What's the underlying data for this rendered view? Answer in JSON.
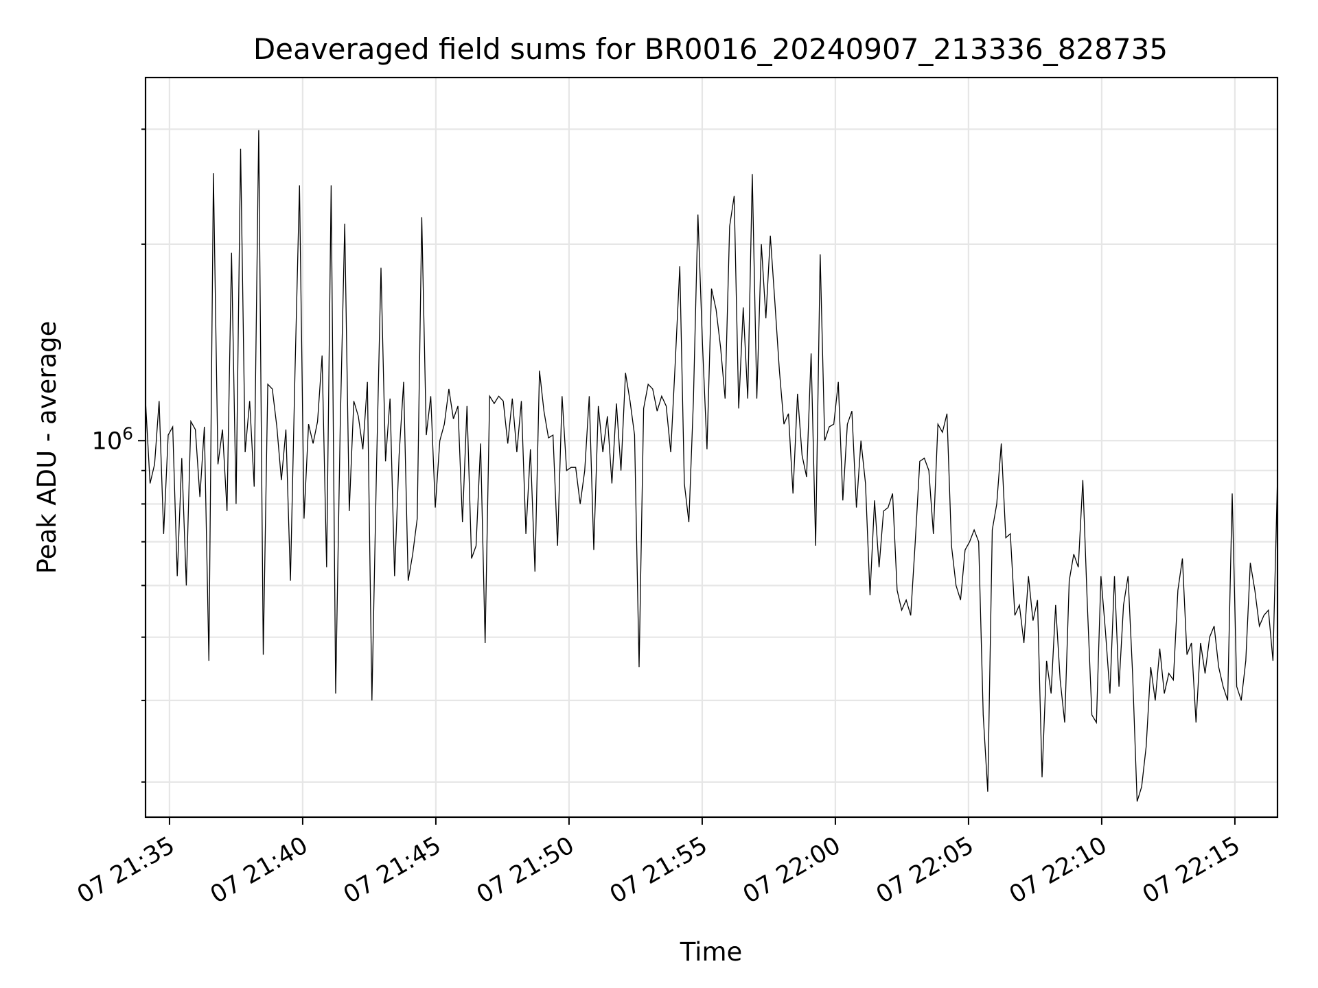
{
  "chart_data": {
    "type": "line",
    "title": "Deaveraged field sums for BR0016_20240907_213336_828735",
    "xlabel": "Time",
    "ylabel": "Peak ADU - average",
    "y_scale": "log",
    "grid": true,
    "legend": "none",
    "line_color": "#000000",
    "x_tick_labels": [
      "07 21:35",
      "07 21:40",
      "07 21:45",
      "07 21:50",
      "07 21:55",
      "07 22:00",
      "07 22:05",
      "07 22:10",
      "07 22:15"
    ],
    "x_tick_minutes": [
      35,
      40,
      45,
      50,
      55,
      60,
      65,
      70,
      75
    ],
    "y_major_tick": {
      "value": 1000000,
      "label_base": "10",
      "label_exp": "6"
    },
    "y_minor_ticks": [
      300000,
      400000,
      500000,
      600000,
      700000,
      800000,
      900000,
      2000000,
      3000000
    ],
    "xlim_minutes": [
      34.1,
      76.6
    ],
    "ylim": [
      265000,
      3600000
    ],
    "x_start_minute": 34.1,
    "x_end_minute": 76.6,
    "values": [
      1150000,
      860000,
      920000,
      1150000,
      720000,
      1020000,
      1050000,
      620000,
      940000,
      600000,
      1070000,
      1040000,
      820000,
      1050000,
      460000,
      2570000,
      920000,
      1040000,
      780000,
      1940000,
      800000,
      2800000,
      960000,
      1150000,
      850000,
      2990000,
      470000,
      1220000,
      1200000,
      1050000,
      870000,
      1040000,
      610000,
      1270000,
      2460000,
      760000,
      1060000,
      990000,
      1070000,
      1350000,
      640000,
      2460000,
      410000,
      1050000,
      2150000,
      780000,
      1150000,
      1090000,
      970000,
      1230000,
      400000,
      900000,
      1840000,
      930000,
      1160000,
      620000,
      950000,
      1230000,
      610000,
      670000,
      760000,
      2200000,
      1020000,
      1170000,
      790000,
      1000000,
      1060000,
      1200000,
      1080000,
      1130000,
      750000,
      1130000,
      660000,
      690000,
      990000,
      490000,
      1170000,
      1140000,
      1170000,
      1150000,
      990000,
      1160000,
      960000,
      1150000,
      720000,
      970000,
      630000,
      1280000,
      1110000,
      1010000,
      1020000,
      690000,
      1170000,
      900000,
      910000,
      910000,
      800000,
      900000,
      1170000,
      680000,
      1130000,
      960000,
      1090000,
      860000,
      1140000,
      900000,
      1270000,
      1150000,
      1020000,
      450000,
      1120000,
      1220000,
      1200000,
      1110000,
      1170000,
      1130000,
      960000,
      1320000,
      1850000,
      860000,
      750000,
      1150000,
      2220000,
      1410000,
      970000,
      1710000,
      1590000,
      1390000,
      1160000,
      2130000,
      2370000,
      1120000,
      1600000,
      1160000,
      2560000,
      1160000,
      2000000,
      1540000,
      2060000,
      1630000,
      1280000,
      1060000,
      1100000,
      830000,
      1180000,
      950000,
      880000,
      1360000,
      690000,
      1930000,
      1000000,
      1050000,
      1060000,
      1230000,
      810000,
      1060000,
      1110000,
      790000,
      1000000,
      860000,
      580000,
      810000,
      640000,
      780000,
      790000,
      830000,
      590000,
      550000,
      570000,
      540000,
      700000,
      930000,
      940000,
      900000,
      720000,
      1060000,
      1030000,
      1100000,
      690000,
      600000,
      570000,
      680000,
      700000,
      730000,
      700000,
      380000,
      290000,
      730000,
      800000,
      990000,
      710000,
      720000,
      540000,
      560000,
      490000,
      620000,
      530000,
      570000,
      305000,
      460000,
      410000,
      560000,
      430000,
      370000,
      610000,
      670000,
      640000,
      870000,
      560000,
      380000,
      370000,
      620000,
      510000,
      410000,
      620000,
      420000,
      560000,
      620000,
      440000,
      280000,
      295000,
      340000,
      450000,
      400000,
      480000,
      410000,
      440000,
      430000,
      590000,
      660000,
      470000,
      490000,
      370000,
      490000,
      440000,
      500000,
      520000,
      450000,
      420000,
      400000,
      830000,
      420000,
      400000,
      460000,
      650000,
      590000,
      520000,
      540000,
      550000,
      460000,
      880000
    ]
  }
}
